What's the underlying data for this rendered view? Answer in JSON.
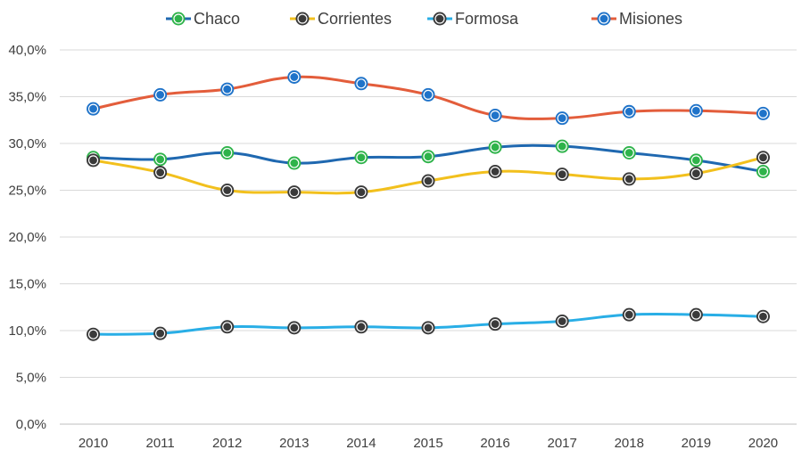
{
  "chart_data": {
    "type": "line",
    "title": "",
    "xlabel": "",
    "ylabel": "",
    "categories": [
      "2010",
      "2011",
      "2012",
      "2013",
      "2014",
      "2015",
      "2016",
      "2017",
      "2018",
      "2019",
      "2020"
    ],
    "ylim": [
      0,
      40
    ],
    "yticks": [
      0,
      5,
      10,
      15,
      20,
      25,
      30,
      35,
      40
    ],
    "ytick_labels": [
      "0,0%",
      "5,0%",
      "10,0%",
      "15,0%",
      "20,0%",
      "25,0%",
      "30,0%",
      "35,0%",
      "40,0%"
    ],
    "grid": true,
    "legend_position": "top",
    "smooth": true,
    "series": [
      {
        "name": "Chaco",
        "line_color": "#1f68b0",
        "marker_color": "#2eb34a",
        "values": [
          28.5,
          28.3,
          29.0,
          27.9,
          28.5,
          28.6,
          29.6,
          29.7,
          29.0,
          28.2,
          27.0
        ]
      },
      {
        "name": "Corrientes",
        "line_color": "#f2c01d",
        "marker_color": "#3a3a3a",
        "values": [
          28.2,
          26.9,
          25.0,
          24.8,
          24.8,
          26.0,
          27.0,
          26.7,
          26.2,
          26.8,
          28.5
        ]
      },
      {
        "name": "Formosa",
        "line_color": "#29aee6",
        "marker_color": "#3a3a3a",
        "values": [
          9.6,
          9.7,
          10.4,
          10.3,
          10.4,
          10.3,
          10.7,
          11.0,
          11.7,
          11.7,
          11.5
        ]
      },
      {
        "name": "Misiones",
        "line_color": "#e35d3b",
        "marker_color": "#1f73c9",
        "values": [
          33.7,
          35.2,
          35.8,
          37.1,
          36.4,
          35.2,
          33.0,
          32.7,
          33.4,
          33.5,
          33.2
        ]
      }
    ]
  }
}
